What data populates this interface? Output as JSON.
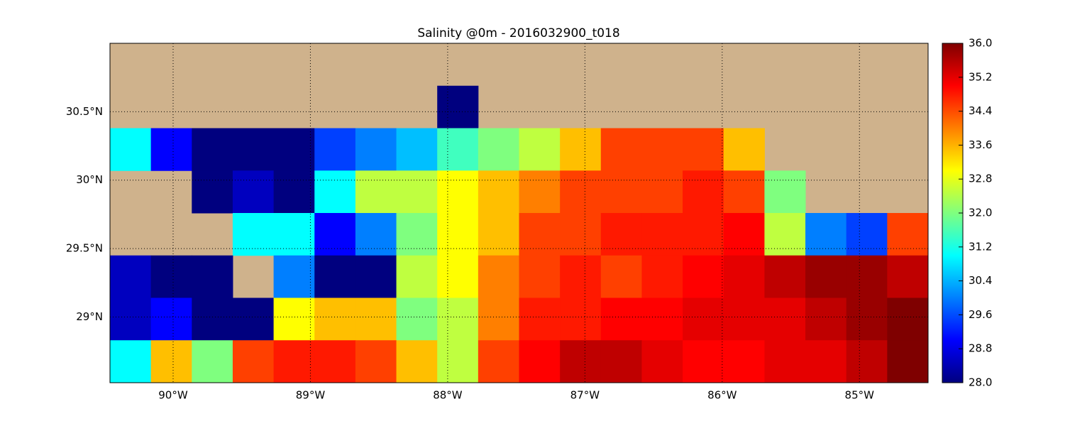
{
  "chart_data": {
    "type": "heatmap",
    "title": "Salinity @0m - 2016032900_t018",
    "xlim": [
      -90.46,
      -84.5
    ],
    "ylim": [
      28.52,
      31.0
    ],
    "xticks": [
      {
        "value": -90,
        "label": "90°W"
      },
      {
        "value": -89,
        "label": "89°W"
      },
      {
        "value": -88,
        "label": "88°W"
      },
      {
        "value": -87,
        "label": "87°W"
      },
      {
        "value": -86,
        "label": "86°W"
      },
      {
        "value": -85,
        "label": "85°W"
      }
    ],
    "yticks": [
      {
        "value": 29,
        "label": "29°N"
      },
      {
        "value": 29.5,
        "label": "29.5°N"
      },
      {
        "value": 30,
        "label": "30°N"
      },
      {
        "value": 30.5,
        "label": "30.5°N"
      }
    ],
    "grid": true,
    "land_color": "#cfb28c",
    "colormap": [
      "#00007f",
      "#0000ff",
      "#007fff",
      "#00ffff",
      "#7fff7f",
      "#ffff00",
      "#ff7f00",
      "#ff0000",
      "#7f0000"
    ],
    "clim": [
      28,
      36
    ],
    "cticks": [
      {
        "value": 28,
        "label": "28.0"
      },
      28.8,
      29.6,
      30.4,
      31.2,
      {
        "value": 32,
        "label": "32.0"
      },
      32.8,
      33.6,
      34.4,
      35.2,
      {
        "value": 36,
        "label": "36.0"
      }
    ],
    "z": [
      [
        null,
        null,
        null,
        null,
        null,
        null,
        null,
        null,
        null,
        null,
        null,
        null,
        null,
        null,
        null,
        null,
        null,
        null,
        null,
        null
      ],
      [
        null,
        null,
        null,
        null,
        null,
        null,
        null,
        null,
        28,
        null,
        null,
        null,
        null,
        null,
        null,
        null,
        null,
        null,
        null,
        null
      ],
      [
        31,
        29,
        28,
        28,
        28,
        29.5,
        30,
        30.5,
        31.5,
        32,
        32.5,
        33.5,
        34.5,
        34.5,
        34.5,
        33.5,
        null,
        null,
        null,
        null
      ],
      [
        null,
        null,
        28,
        28.5,
        28,
        31,
        32.5,
        32.5,
        33,
        33.5,
        34,
        34.5,
        34.5,
        34.5,
        34.8,
        34.5,
        32,
        null,
        null,
        null
      ],
      [
        null,
        null,
        null,
        31,
        31,
        29,
        30,
        32,
        33,
        33.5,
        34.5,
        34.5,
        34.8,
        34.8,
        34.8,
        35,
        32.5,
        30,
        29.5,
        34.5
      ],
      [
        28.5,
        28,
        28,
        null,
        30,
        28,
        28,
        32.5,
        33,
        34,
        34.5,
        34.8,
        34.5,
        34.8,
        35,
        35.2,
        35.5,
        35.8,
        35.8,
        35.5
      ],
      [
        28.5,
        29,
        28,
        28,
        33,
        33.5,
        33.5,
        32,
        32.5,
        34,
        34.8,
        34.8,
        35,
        35,
        35.2,
        35.2,
        35.2,
        35.5,
        35.8,
        36
      ],
      [
        31,
        33.5,
        32,
        34.5,
        34.8,
        34.8,
        34.5,
        33.5,
        32.5,
        34.5,
        35,
        35.5,
        35.5,
        35.2,
        35,
        35,
        35.2,
        35.2,
        35.5,
        36
      ]
    ]
  }
}
